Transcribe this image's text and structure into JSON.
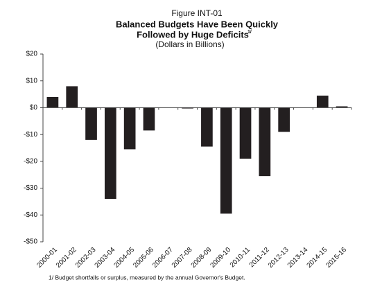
{
  "chart_data": {
    "type": "bar",
    "figure_label": "Figure INT-01",
    "title_lines": [
      "Balanced Budgets Have Been Quickly",
      "Followed by Huge Deficits"
    ],
    "title_footnote_mark": "1/",
    "subtitle": "(Dollars in Billions)",
    "footnote": "1/ Budget shortfalls or surplus, measured by the annual Governor's Budget.",
    "categories": [
      "2000-01",
      "2001-02",
      "2002-03",
      "2003-04",
      "2004-05",
      "2005-06",
      "2006-07",
      "2007-08",
      "2008-09",
      "2009-10",
      "2010-11",
      "2011-12",
      "2012-13",
      "2013-14",
      "2014-15",
      "2015-16"
    ],
    "values": [
      4,
      8,
      -12,
      -34,
      -15.5,
      -8.5,
      0,
      -0.3,
      -14.5,
      -39.5,
      -19,
      -25.5,
      -9,
      0,
      4.5,
      0.5
    ],
    "color": "#231f20",
    "ylim": [
      -50,
      20
    ],
    "yticks": [
      {
        "value": -50,
        "label": "-$50"
      },
      {
        "value": -40,
        "label": "-$40"
      },
      {
        "value": -30,
        "label": "-$30"
      },
      {
        "value": -20,
        "label": "-$20"
      },
      {
        "value": -10,
        "label": "-$10"
      },
      {
        "value": 0,
        "label": "$0"
      },
      {
        "value": 10,
        "label": "$10"
      },
      {
        "value": 20,
        "label": "$20"
      }
    ]
  }
}
